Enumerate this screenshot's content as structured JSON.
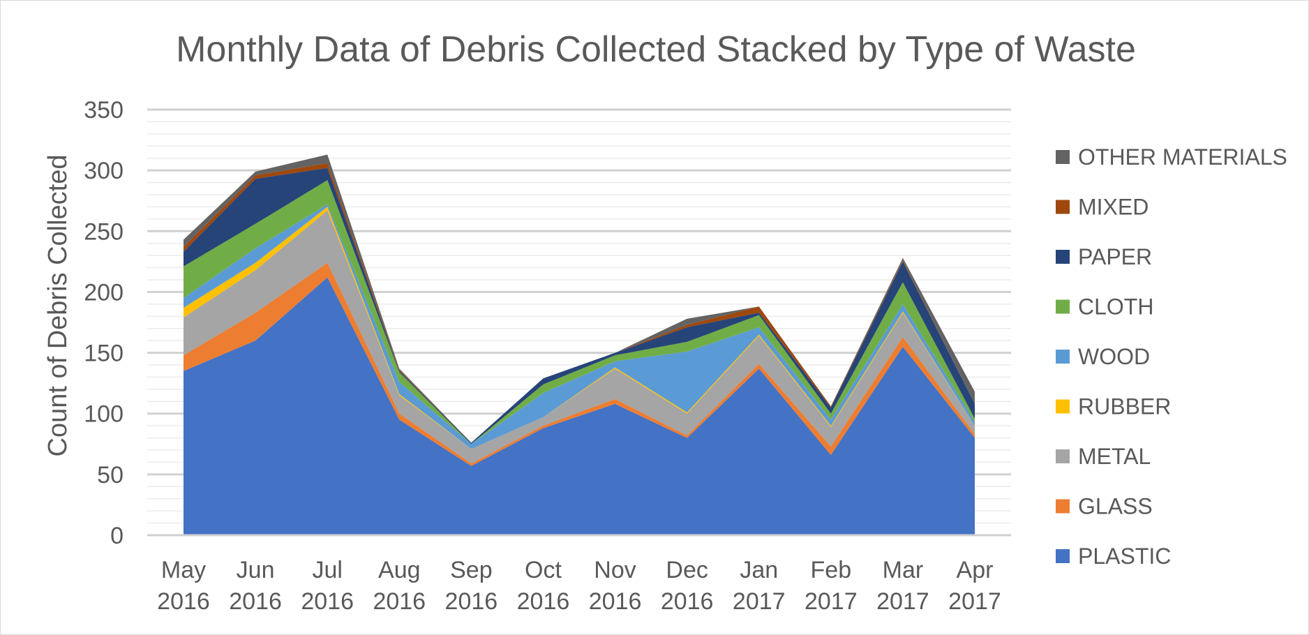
{
  "chart_data": {
    "type": "area",
    "stacked": true,
    "title": "Monthly Data of Debris Collected Stacked by Type of Waste",
    "xlabel": "",
    "ylabel": "Count of Debris Collected",
    "categories": [
      [
        "May",
        "2016"
      ],
      [
        "Jun",
        "2016"
      ],
      [
        "Jul",
        "2016"
      ],
      [
        "Aug",
        "2016"
      ],
      [
        "Sep",
        "2016"
      ],
      [
        "Oct",
        "2016"
      ],
      [
        "Nov",
        "2016"
      ],
      [
        "Dec",
        "2016"
      ],
      [
        "Jan",
        "2017"
      ],
      [
        "Feb",
        "2017"
      ],
      [
        "Mar",
        "2017"
      ],
      [
        "Apr",
        "2017"
      ]
    ],
    "ylim": [
      0,
      350
    ],
    "yticks": [
      0,
      50,
      100,
      150,
      200,
      250,
      300,
      350
    ],
    "grid": true,
    "legend_position": "right",
    "series": [
      {
        "name": "PLASTIC",
        "color": "#4472c4",
        "values": [
          135,
          160,
          212,
          95,
          57,
          88,
          108,
          80,
          137,
          66,
          155,
          80
        ]
      },
      {
        "name": "GLASS",
        "color": "#ed7d31",
        "values": [
          13,
          23,
          12,
          5,
          2,
          2,
          4,
          2,
          4,
          7,
          8,
          3
        ]
      },
      {
        "name": "METAL",
        "color": "#a5a5a5",
        "values": [
          31,
          35,
          43,
          15,
          12,
          7,
          25,
          18,
          23,
          16,
          20,
          7
        ]
      },
      {
        "name": "RUBBER",
        "color": "#ffc000",
        "values": [
          8,
          6,
          3,
          1,
          0,
          0,
          1,
          1,
          1,
          1,
          1,
          0
        ]
      },
      {
        "name": "WOOD",
        "color": "#5b9bd5",
        "values": [
          8,
          12,
          2,
          10,
          4,
          20,
          5,
          50,
          6,
          5,
          6,
          3
        ]
      },
      {
        "name": "CLOTH",
        "color": "#70ad47",
        "values": [
          26,
          20,
          20,
          8,
          0,
          7,
          5,
          8,
          10,
          5,
          18,
          3
        ]
      },
      {
        "name": "PAPER",
        "color": "#264478",
        "values": [
          12,
          37,
          10,
          1,
          1,
          5,
          2,
          12,
          2,
          5,
          17,
          12
        ]
      },
      {
        "name": "MIXED",
        "color": "#9e480e",
        "values": [
          4,
          3,
          4,
          1,
          0,
          0,
          0,
          2,
          5,
          1,
          1,
          0
        ]
      },
      {
        "name": "OTHER MATERIALS",
        "color": "#636363",
        "values": [
          6,
          3,
          7,
          1,
          0,
          0,
          0,
          5,
          0,
          0,
          2,
          10
        ]
      }
    ]
  }
}
